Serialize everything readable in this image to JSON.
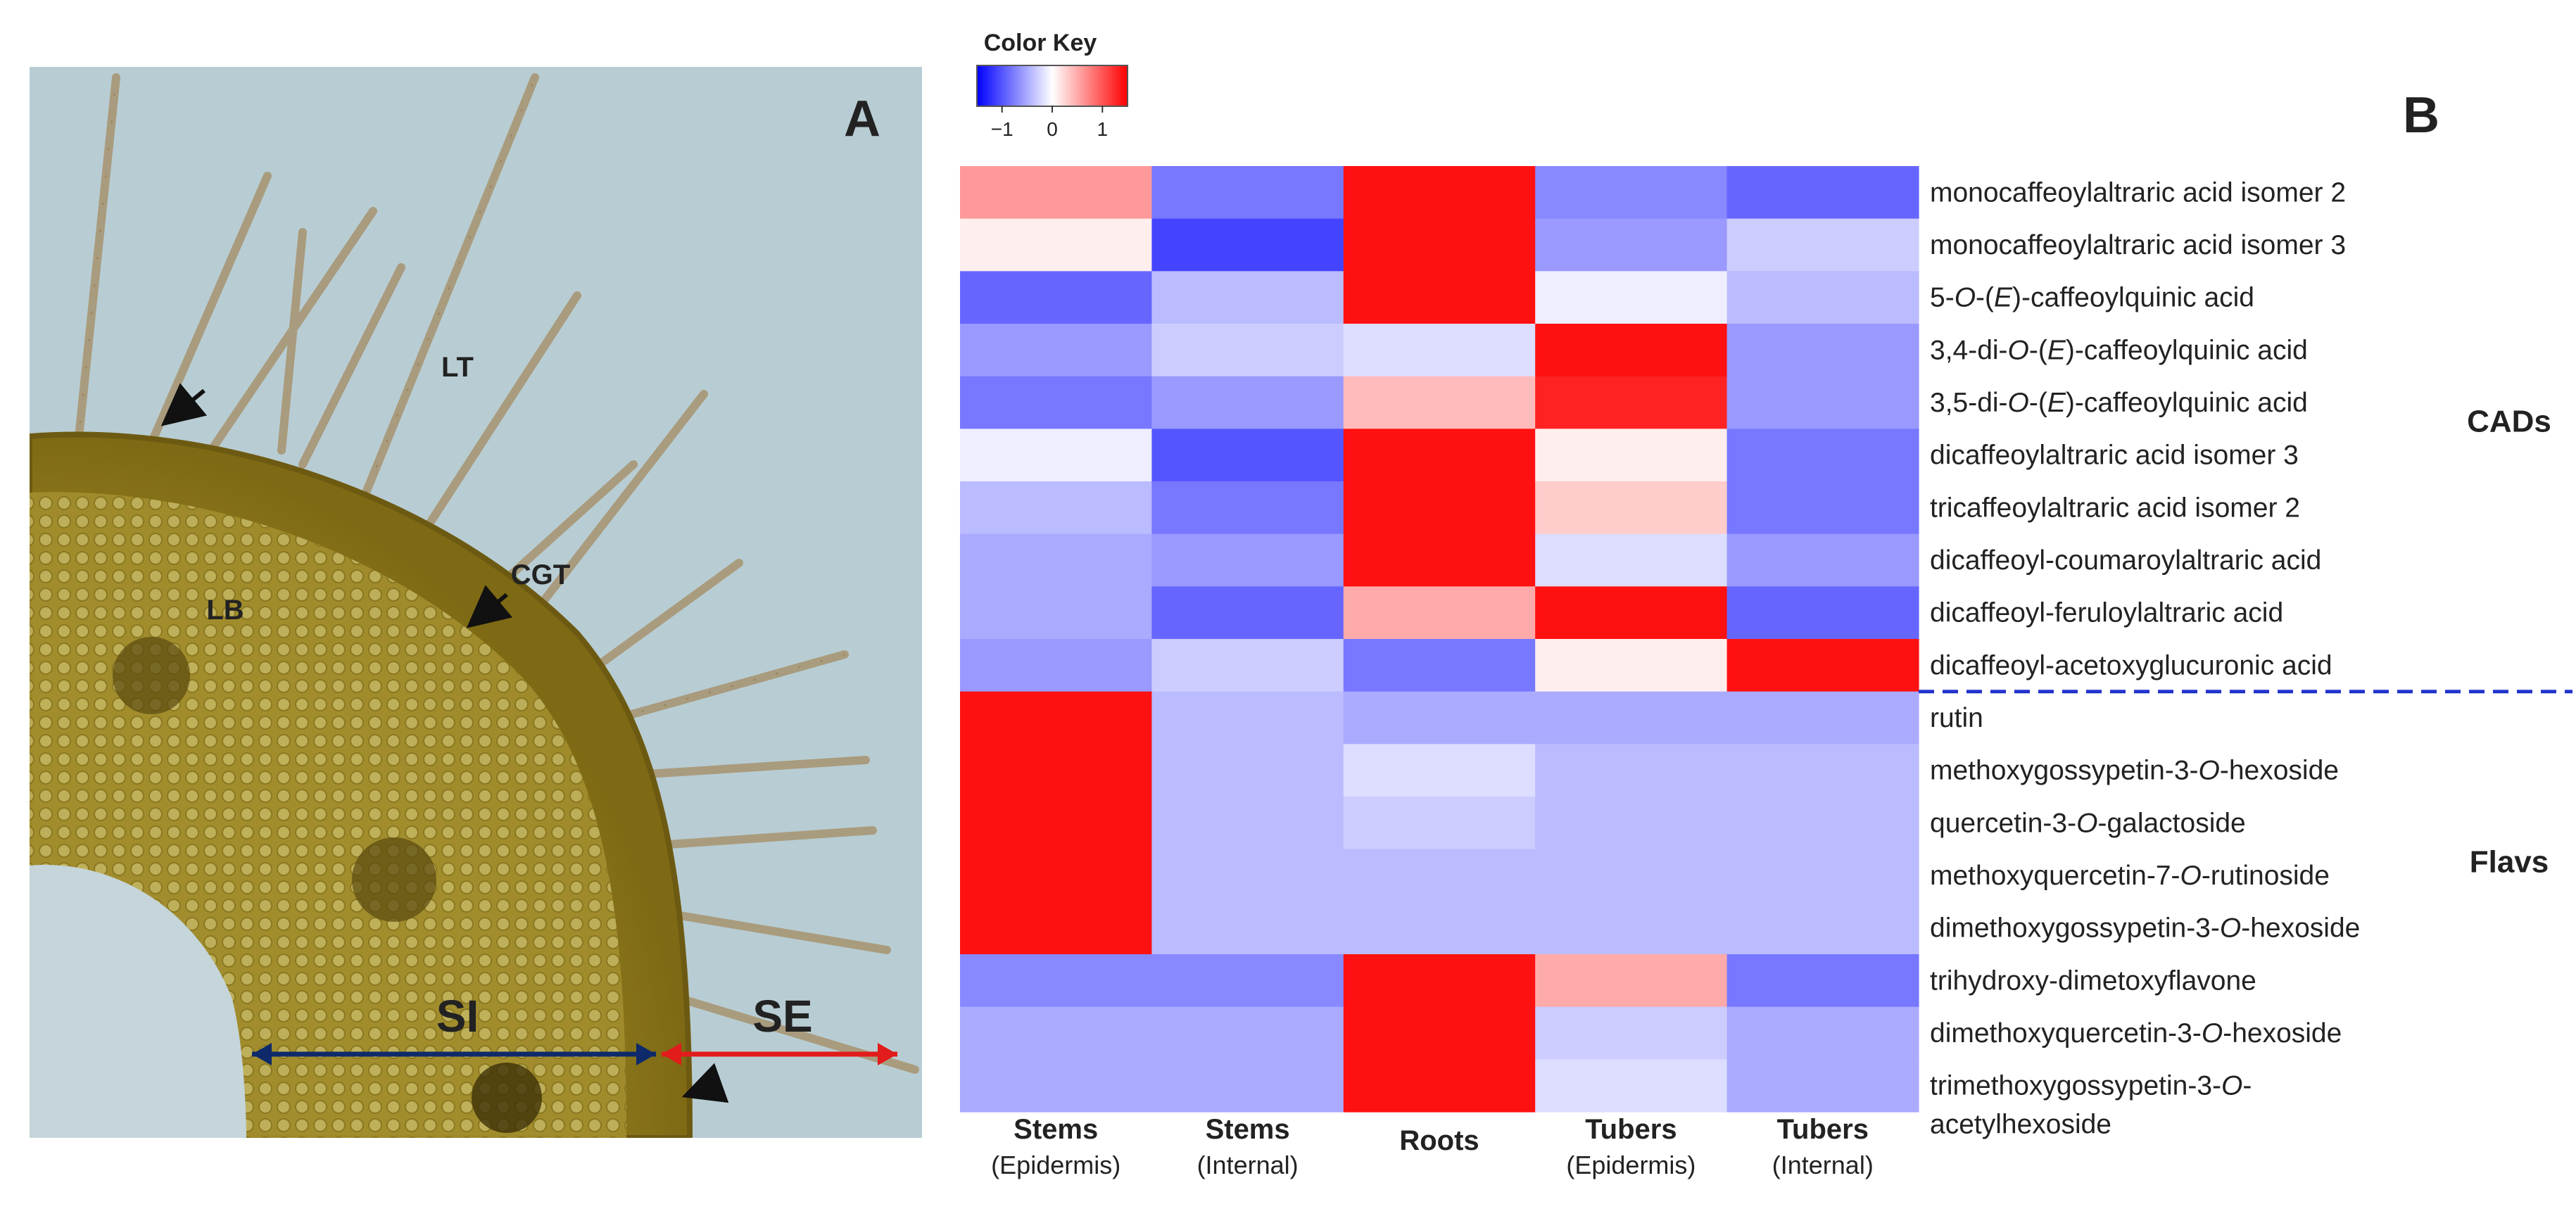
{
  "panel_a": {
    "letter": "A",
    "labels": {
      "lt": "LT",
      "lb": "LB",
      "cgt": "CGT",
      "si": "SI",
      "se": "SE"
    }
  },
  "panel_b": {
    "letter": "B"
  },
  "chart_data": {
    "type": "heatmap",
    "color_key": {
      "title": "Color Key",
      "ticks": [
        "−1",
        "0",
        "1"
      ],
      "scale": [
        -1.5,
        1.5
      ],
      "low_color": "#0000ff",
      "mid_color": "#ffffff",
      "high_color": "#ff0000"
    },
    "columns": [
      {
        "name": "Stems",
        "sub": "(Epidermis)"
      },
      {
        "name": "Stems",
        "sub": "(Internal)"
      },
      {
        "name": "Roots",
        "sub": ""
      },
      {
        "name": "Tubers",
        "sub": "(Epidermis)"
      },
      {
        "name": "Tubers",
        "sub": "(Internal)"
      }
    ],
    "rows": [
      {
        "parts": [
          "monocaffeoylaltraric acid isomer 2"
        ]
      },
      {
        "parts": [
          "monocaffeoylaltraric acid isomer 3"
        ]
      },
      {
        "parts": [
          "5-",
          {
            "i": "O"
          },
          "-(",
          {
            "i": "E"
          },
          ")-caffeoylquinic acid"
        ]
      },
      {
        "parts": [
          "3,4-di-",
          {
            "i": "O"
          },
          "-(",
          {
            "i": "E"
          },
          ")-caffeoylquinic acid"
        ]
      },
      {
        "parts": [
          "3,5-di-",
          {
            "i": "O"
          },
          "-(",
          {
            "i": "E"
          },
          ")-caffeoylquinic acid"
        ]
      },
      {
        "parts": [
          "dicaffeoylaltraric acid isomer 3"
        ]
      },
      {
        "parts": [
          "tricaffeoylaltraric acid isomer 2"
        ]
      },
      {
        "parts": [
          "dicaffeoyl-coumaroylaltraric acid"
        ]
      },
      {
        "parts": [
          "dicaffeoyl-feruloylaltraric acid"
        ]
      },
      {
        "parts": [
          "dicaffeoyl-acetoxyglucuronic acid"
        ]
      },
      {
        "parts": [
          "rutin"
        ]
      },
      {
        "parts": [
          "methoxygossypetin-3-",
          {
            "i": "O"
          },
          "-hexoside"
        ]
      },
      {
        "parts": [
          "quercetin-3-",
          {
            "i": "O"
          },
          "-galactoside"
        ]
      },
      {
        "parts": [
          "methoxyquercetin-7-",
          {
            "i": "O"
          },
          "-rutinoside"
        ]
      },
      {
        "parts": [
          "dimethoxygossypetin-3-",
          {
            "i": "O"
          },
          "-hexoside"
        ]
      },
      {
        "parts": [
          "trihydroxy-dimetoxyflavone"
        ]
      },
      {
        "parts": [
          "dimethoxyquercetin-3-",
          {
            "i": "O"
          },
          "-hexoside"
        ]
      },
      {
        "parts": [
          "trimethoxygossypetin-3-",
          {
            "i": "O"
          },
          "-"
        ]
      }
    ],
    "last_row_continuation": "acetylhexoside",
    "values": [
      [
        0.6,
        -0.8,
        1.4,
        -0.7,
        -0.9
      ],
      [
        0.1,
        -1.1,
        1.4,
        -0.6,
        -0.3
      ],
      [
        -0.9,
        -0.4,
        1.4,
        -0.1,
        -0.4
      ],
      [
        -0.6,
        -0.3,
        -0.2,
        1.4,
        -0.6
      ],
      [
        -0.8,
        -0.6,
        0.4,
        1.3,
        -0.6
      ],
      [
        -0.1,
        -1.0,
        1.4,
        0.1,
        -0.8
      ],
      [
        -0.4,
        -0.8,
        1.4,
        0.3,
        -0.8
      ],
      [
        -0.5,
        -0.6,
        1.4,
        -0.2,
        -0.6
      ],
      [
        -0.5,
        -0.9,
        0.5,
        1.4,
        -0.9
      ],
      [
        -0.6,
        -0.3,
        -0.8,
        0.1,
        1.4
      ],
      [
        1.4,
        -0.4,
        -0.5,
        -0.5,
        -0.5
      ],
      [
        1.4,
        -0.4,
        -0.2,
        -0.4,
        -0.4
      ],
      [
        1.4,
        -0.4,
        -0.3,
        -0.4,
        -0.4
      ],
      [
        1.4,
        -0.4,
        -0.4,
        -0.4,
        -0.4
      ],
      [
        1.4,
        -0.4,
        -0.4,
        -0.4,
        -0.4
      ],
      [
        -0.7,
        -0.7,
        1.4,
        0.5,
        -0.8
      ],
      [
        -0.5,
        -0.5,
        1.4,
        -0.3,
        -0.5
      ],
      [
        -0.5,
        -0.5,
        1.4,
        -0.2,
        -0.5
      ]
    ],
    "groups": [
      {
        "label": "CADs",
        "rows": [
          0,
          9
        ]
      },
      {
        "label": "Flavs",
        "rows": [
          10,
          17
        ]
      }
    ],
    "divider_color": "#2233cc",
    "group_label_color": "#1f3070"
  }
}
